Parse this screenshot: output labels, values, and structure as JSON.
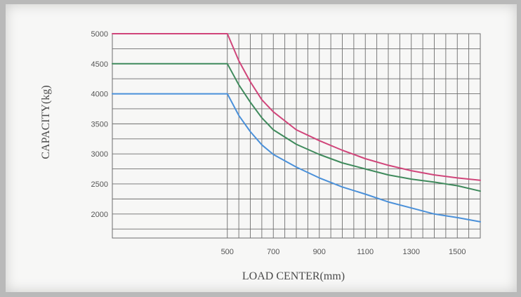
{
  "chart_data": {
    "type": "line",
    "title": "",
    "xlabel": "LOAD CENTER(mm)",
    "ylabel": "CAPACITY(kg)",
    "xlim": [
      0,
      1600
    ],
    "ylim": [
      1600,
      5000
    ],
    "x_ticks": [
      500,
      700,
      900,
      1100,
      1300,
      1500
    ],
    "y_ticks": [
      2000,
      2500,
      3000,
      3500,
      4000,
      4500,
      5000
    ],
    "grid": true,
    "legend": "none",
    "series": [
      {
        "color": "#d0457a",
        "x": [
          0,
          500,
          550,
          600,
          650,
          700,
          800,
          900,
          1000,
          1100,
          1200,
          1300,
          1400,
          1500,
          1600
        ],
        "y": [
          5000,
          5000,
          4550,
          4200,
          3900,
          3700,
          3400,
          3220,
          3060,
          2920,
          2810,
          2720,
          2650,
          2600,
          2560
        ]
      },
      {
        "color": "#3f8a5c",
        "x": [
          0,
          500,
          550,
          600,
          650,
          700,
          800,
          900,
          1000,
          1100,
          1200,
          1300,
          1400,
          1500,
          1600
        ],
        "y": [
          4500,
          4500,
          4150,
          3860,
          3600,
          3400,
          3160,
          2990,
          2850,
          2750,
          2650,
          2580,
          2530,
          2470,
          2380
        ]
      },
      {
        "color": "#4a90d9",
        "x": [
          0,
          500,
          550,
          600,
          650,
          700,
          800,
          900,
          1000,
          1100,
          1200,
          1300,
          1400,
          1500,
          1600
        ],
        "y": [
          4000,
          4000,
          3640,
          3370,
          3150,
          2990,
          2780,
          2600,
          2450,
          2330,
          2200,
          2100,
          2000,
          1940,
          1870
        ]
      }
    ]
  }
}
